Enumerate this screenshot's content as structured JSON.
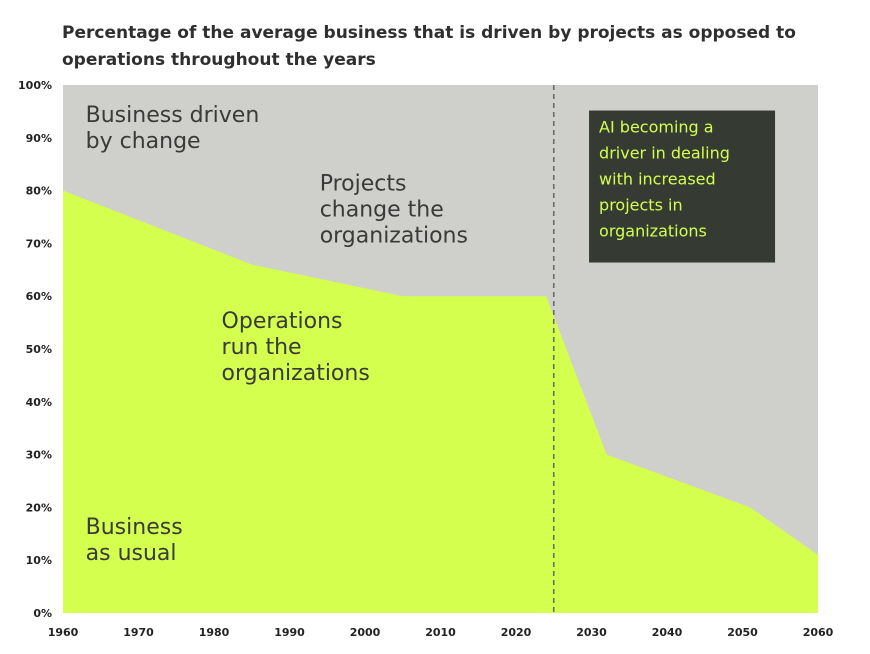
{
  "title": "Percentage of the average business that is driven by projects as opposed to operations throughout the years",
  "colors": {
    "operations": "#d4ff4f",
    "projects": "#cfcfcb",
    "callout_bg": "#353b33",
    "callout_text": "#d4ff4f",
    "annotation": "#3a3a3a",
    "divider": "#6b6b6b"
  },
  "chart_data": {
    "type": "area",
    "title": "Percentage of the average business that is driven by projects as opposed to operations throughout the years",
    "xlabel": "",
    "ylabel": "",
    "xlim": [
      1960,
      2060
    ],
    "ylim": [
      0,
      100
    ],
    "x_ticks": [
      1960,
      1970,
      1980,
      1990,
      2000,
      2010,
      2020,
      2030,
      2040,
      2050,
      2060
    ],
    "y_ticks": [
      0,
      10,
      20,
      30,
      40,
      50,
      60,
      70,
      80,
      90,
      100
    ],
    "y_tick_labels": [
      "0%",
      "10%",
      "20%",
      "30%",
      "40%",
      "50%",
      "60%",
      "70%",
      "80%",
      "90%",
      "100%"
    ],
    "grid": false,
    "series": [
      {
        "x": [
          1960,
          1985,
          2005,
          2024,
          2032,
          2051,
          2060
        ],
        "values": [
          80,
          66,
          60,
          60,
          30,
          20,
          11
        ]
      }
    ],
    "divider_x": 2025,
    "annotations": [
      {
        "text": [
          "Business driven",
          "by change"
        ],
        "x": 1963,
        "y": 93
      },
      {
        "text": [
          "Projects",
          "change the",
          "organizations"
        ],
        "x": 1994,
        "y": 80
      },
      {
        "text": [
          "Operations",
          "run the",
          "organizations"
        ],
        "x": 1981,
        "y": 54
      },
      {
        "text": [
          "Business",
          "as usual"
        ],
        "x": 1963,
        "y": 15
      }
    ],
    "callout": {
      "text": [
        "AI becoming a",
        "driver in dealing",
        "with increased",
        "projects in",
        "organizations"
      ],
      "x": 2031,
      "y": 91
    }
  }
}
